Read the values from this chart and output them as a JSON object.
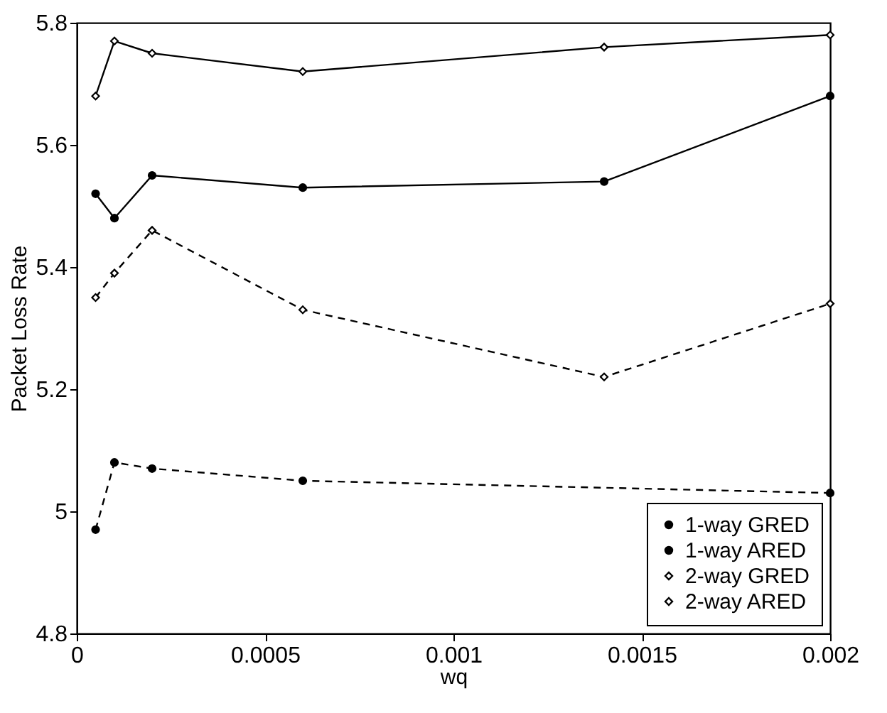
{
  "chart_data": {
    "type": "line",
    "xlabel": "wq",
    "ylabel": "Packet Loss Rate",
    "x": [
      5e-05,
      0.0001,
      0.0002,
      0.0006,
      0.0014,
      0.002
    ],
    "series": [
      {
        "name": "1-way GRED",
        "color": "#000000",
        "marker": "circle",
        "line_style": "solid",
        "values": [
          5.52,
          5.48,
          5.55,
          5.53,
          5.54,
          5.68
        ]
      },
      {
        "name": "1-way ARED",
        "color": "#000000",
        "marker": "circle",
        "line_style": "dashed",
        "x": [
          5e-05,
          0.0001,
          0.0002,
          0.0006,
          0.002
        ],
        "values": [
          4.97,
          5.08,
          5.07,
          5.05,
          5.03
        ]
      },
      {
        "name": "2-way GRED",
        "color": "#000000",
        "marker": "diamond",
        "line_style": "solid",
        "values": [
          5.68,
          5.77,
          5.75,
          5.72,
          5.76,
          5.78
        ]
      },
      {
        "name": "2-way ARED",
        "color": "#000000",
        "marker": "diamond",
        "line_style": "dashed",
        "values": [
          5.35,
          5.39,
          5.46,
          5.33,
          5.22,
          5.34
        ]
      }
    ],
    "xlim": [
      0,
      0.002
    ],
    "xticks": [
      0,
      0.0005,
      0.001,
      0.0015,
      0.002
    ],
    "ylim": [
      4.8,
      5.8
    ],
    "yticks": [
      4.8,
      5,
      5.2,
      5.4,
      5.6,
      5.8
    ],
    "grid": false,
    "legend": "bottom right"
  }
}
